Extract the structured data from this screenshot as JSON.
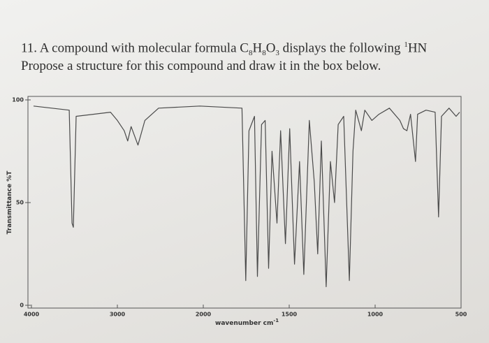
{
  "question": {
    "line1": [
      "11. A compound with molecular formula C",
      "8",
      "H",
      "8",
      "O",
      "3",
      " displays the following ",
      "1",
      "HN"
    ],
    "line2": "Propose a structure for this compound and draw it in the box below."
  },
  "chart_data": {
    "type": "line",
    "ylabel": "Transmittance %T",
    "xlabel": [
      "wavenumber cm",
      "-1"
    ],
    "xlim": [
      4000,
      500
    ],
    "xticks": [
      4000,
      3000,
      2000,
      1500,
      1000,
      500
    ],
    "ylim": [
      0,
      100
    ],
    "yticks": [
      0,
      50,
      100
    ],
    "color": "#4a4a4a",
    "x": [
      3976,
      3560,
      3528,
      3512,
      3480,
      3080,
      3000,
      2920,
      2880,
      2840,
      2760,
      2680,
      2520,
      2040,
      1775,
      1753,
      1734,
      1702,
      1685,
      1661,
      1640,
      1620,
      1600,
      1571,
      1550,
      1522,
      1497,
      1469,
      1440,
      1415,
      1383,
      1354,
      1334,
      1313,
      1285,
      1260,
      1236,
      1215,
      1183,
      1150,
      1129,
      1113,
      1080,
      1060,
      1019,
      978,
      917,
      856,
      835,
      815,
      794,
      765,
      753,
      704,
      651,
      631,
      614,
      570,
      529,
      508
    ],
    "values": [
      97,
      95,
      40,
      38,
      92,
      94,
      90,
      85,
      80,
      87,
      78,
      90,
      96,
      97,
      96,
      12,
      85,
      92,
      14,
      88,
      90,
      18,
      75,
      40,
      85,
      30,
      86,
      20,
      70,
      15,
      90,
      60,
      25,
      80,
      9,
      70,
      50,
      88,
      92,
      12,
      75,
      95,
      85,
      95,
      90,
      93,
      96,
      90,
      86,
      85,
      93,
      70,
      93,
      95,
      94,
      43,
      92,
      96,
      92,
      94
    ]
  }
}
